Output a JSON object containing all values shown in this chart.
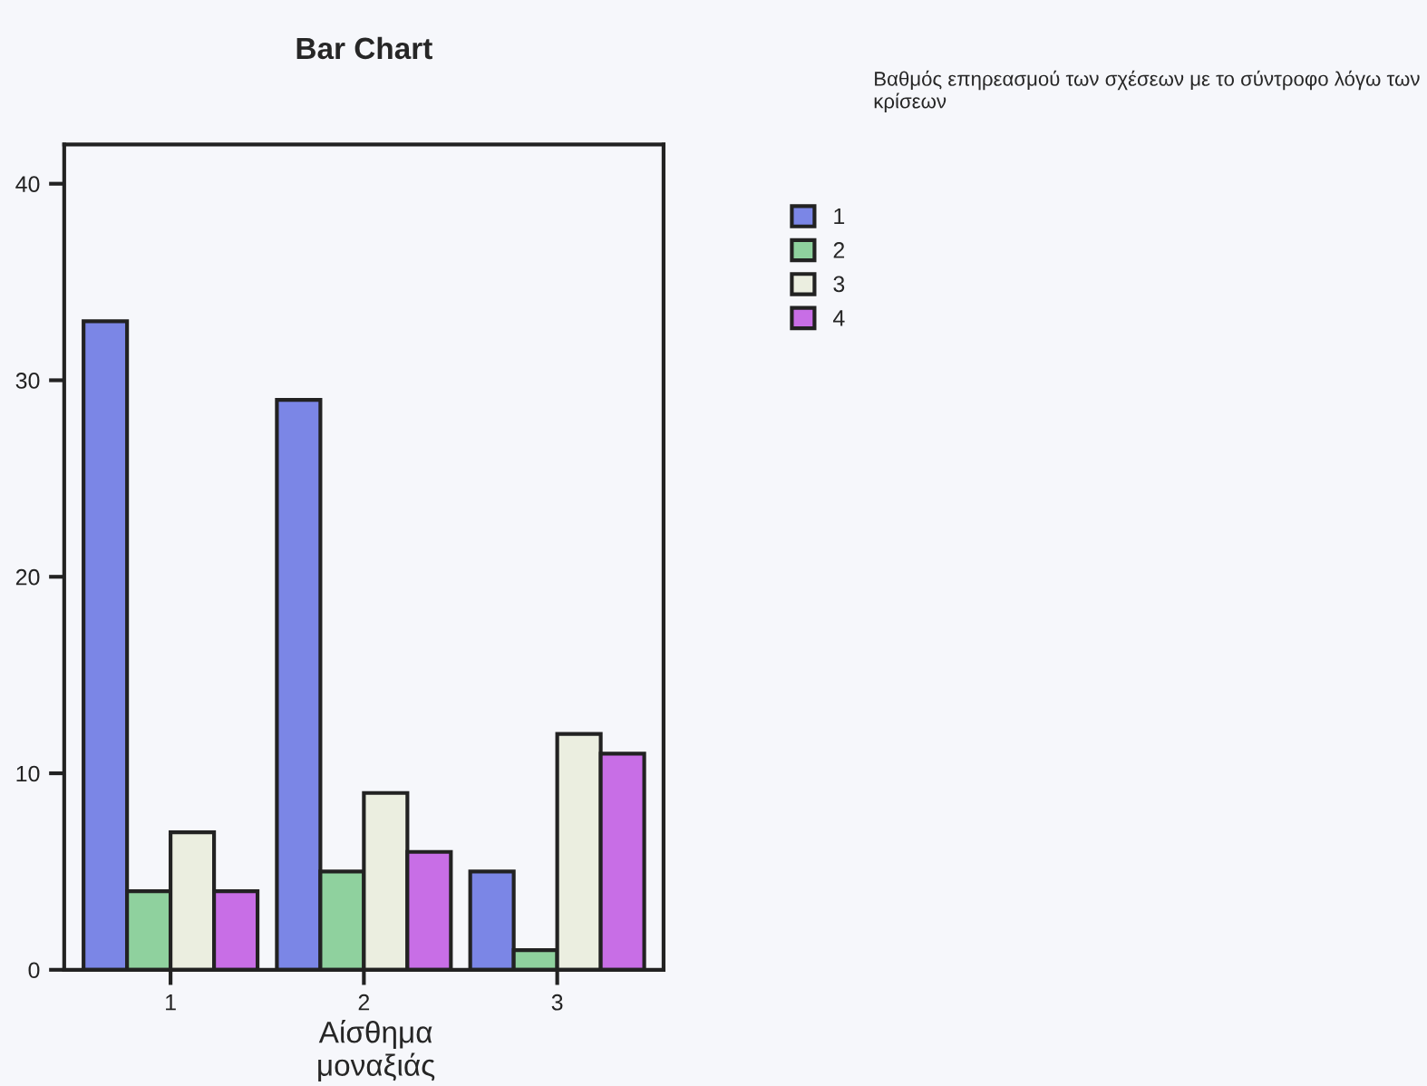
{
  "chart_data": {
    "type": "bar",
    "title": "Bar Chart",
    "xlabel": "Αίσθημα μοναξιάς",
    "legend_title": "Βαθμός επηρεασμού των σχέσεων με το σύντροφο λόγω των κρίσεων",
    "categories": [
      "1",
      "2",
      "3"
    ],
    "series": [
      {
        "name": "1",
        "color": "#7b86e6",
        "values": [
          33,
          29,
          5
        ]
      },
      {
        "name": "2",
        "color": "#8fd19e",
        "values": [
          4,
          5,
          1
        ]
      },
      {
        "name": "3",
        "color": "#ebeee0",
        "values": [
          7,
          9,
          12
        ]
      },
      {
        "name": "4",
        "color": "#c86ee6",
        "values": [
          4,
          6,
          11
        ]
      }
    ],
    "ylim": [
      0,
      42
    ],
    "yticks": [
      0,
      10,
      20,
      30,
      40
    ],
    "grid": false,
    "legend": "right"
  }
}
